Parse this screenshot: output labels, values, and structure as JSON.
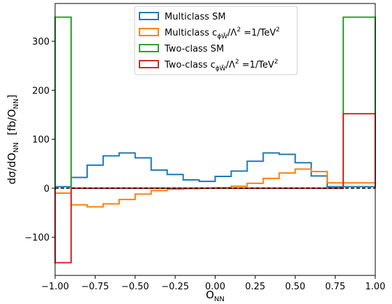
{
  "chart_data": {
    "type": "step-histogram",
    "xlabel": "O",
    "xlabel_sub": "NN",
    "ylabel": "dσ/dO",
    "ylabel_sub": "NN",
    "ylabel_unit": "[fb/O",
    "ylabel_unit_sub": "NN",
    "ylabel_unit_close": "]",
    "xlim": [
      -1.0,
      1.0
    ],
    "ylim": [
      -178,
      377
    ],
    "xticks": [
      {
        "value": -1.0,
        "label": "−1.00"
      },
      {
        "value": -0.75,
        "label": "−0.75"
      },
      {
        "value": -0.5,
        "label": "−0.50"
      },
      {
        "value": -0.25,
        "label": "−0.25"
      },
      {
        "value": 0.0,
        "label": "0.00"
      },
      {
        "value": 0.25,
        "label": "0.25"
      },
      {
        "value": 0.5,
        "label": "0.50"
      },
      {
        "value": 0.75,
        "label": "0.75"
      },
      {
        "value": 1.0,
        "label": "1.00"
      }
    ],
    "yticks": [
      {
        "value": -100,
        "label": "−100"
      },
      {
        "value": 0,
        "label": "0"
      },
      {
        "value": 100,
        "label": "100"
      },
      {
        "value": 200,
        "label": "200"
      },
      {
        "value": 300,
        "label": "300"
      }
    ],
    "bin_edges": [
      -1.0,
      -0.9,
      -0.8,
      -0.7,
      -0.6,
      -0.5,
      -0.4,
      -0.3,
      -0.2,
      -0.1,
      0.0,
      0.1,
      0.2,
      0.3,
      0.4,
      0.5,
      0.6,
      0.7,
      0.8,
      0.9,
      1.0
    ],
    "reference_line": {
      "y": 0,
      "style": "dashed",
      "color": "#000000"
    },
    "legend_position": "top-center",
    "series": [
      {
        "name": "Multiclass SM",
        "color": "#1f77b4",
        "values": [
          3,
          22,
          47,
          66,
          72,
          62,
          37,
          28,
          17,
          14,
          24,
          35,
          55,
          72,
          69,
          52,
          25,
          3,
          3,
          3
        ]
      },
      {
        "name": "Multiclass c_φW̃/Λ² =1/TeV²",
        "color": "#ff7f0e",
        "values": [
          -10,
          -34,
          -38,
          -32,
          -23,
          -12,
          -5,
          -2,
          -1,
          0,
          1,
          4,
          10,
          20,
          31,
          39,
          34,
          11,
          11,
          11
        ]
      },
      {
        "name": "Two-class SM",
        "color": "#2ca02c",
        "values": [
          349,
          0,
          0,
          0,
          0,
          0,
          0,
          0,
          0,
          0,
          0,
          0,
          0,
          0,
          0,
          0,
          0,
          0,
          349,
          349
        ]
      },
      {
        "name": "Two-class c_φW̃/Λ² =1/TeV²",
        "color": "#d62728",
        "values": [
          -152,
          0,
          0,
          0,
          0,
          0,
          0,
          0,
          0,
          0,
          0,
          0,
          0,
          0,
          0,
          0,
          0,
          0,
          152,
          152
        ]
      }
    ],
    "legend": [
      {
        "text": "Multiclass SM",
        "sub": "",
        "sup1": "",
        "tail": "",
        "sup2": ""
      },
      {
        "text": "Multiclass c",
        "sub": "ϕW̃",
        "mid": "/Λ",
        "sup1": "2",
        "tail": " =1/TeV",
        "sup2": "2"
      },
      {
        "text": "Two-class SM",
        "sub": "",
        "sup1": "",
        "tail": "",
        "sup2": ""
      },
      {
        "text": "Two-class c",
        "sub": "ϕW̃",
        "mid": "/Λ",
        "sup1": "2",
        "tail": " =1/TeV",
        "sup2": "2"
      }
    ]
  }
}
